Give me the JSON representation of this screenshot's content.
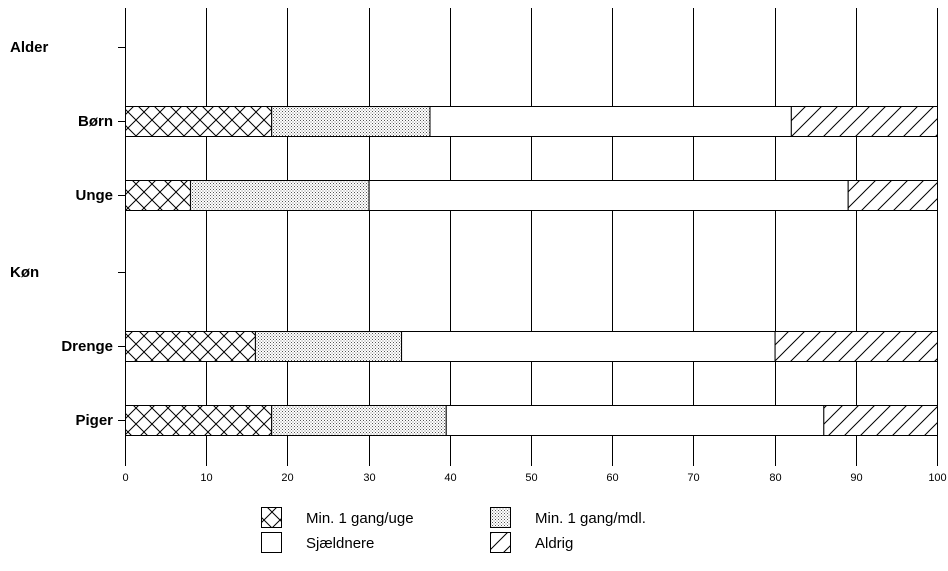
{
  "chart_data": {
    "type": "bar",
    "orientation": "horizontal",
    "stacked": true,
    "categories": [
      "Alder",
      "Børn",
      "Unge",
      "Køn",
      "Drenge",
      "Piger"
    ],
    "group_headers": [
      "Alder",
      "Køn"
    ],
    "series": [
      {
        "name": "Min. 1 gang/uge",
        "pattern": "crosshatch",
        "values": [
          0,
          18,
          8,
          0,
          16,
          18
        ]
      },
      {
        "name": "Min. 1 gang/mdl.",
        "pattern": "dots",
        "values": [
          0,
          19.5,
          22,
          0,
          18,
          21.5
        ]
      },
      {
        "name": "Sjældnere",
        "pattern": "blank",
        "values": [
          0,
          44.5,
          59,
          0,
          46,
          46.5
        ]
      },
      {
        "name": "Aldrig",
        "pattern": "diagonal",
        "values": [
          0,
          18,
          11,
          0,
          20,
          14
        ]
      }
    ],
    "xlim": [
      0,
      100
    ],
    "xticks": [
      0,
      10,
      20,
      30,
      40,
      50,
      60,
      70,
      80,
      90,
      100
    ],
    "grid": true,
    "legend_position": "bottom",
    "title": "",
    "xlabel": "",
    "ylabel": ""
  }
}
